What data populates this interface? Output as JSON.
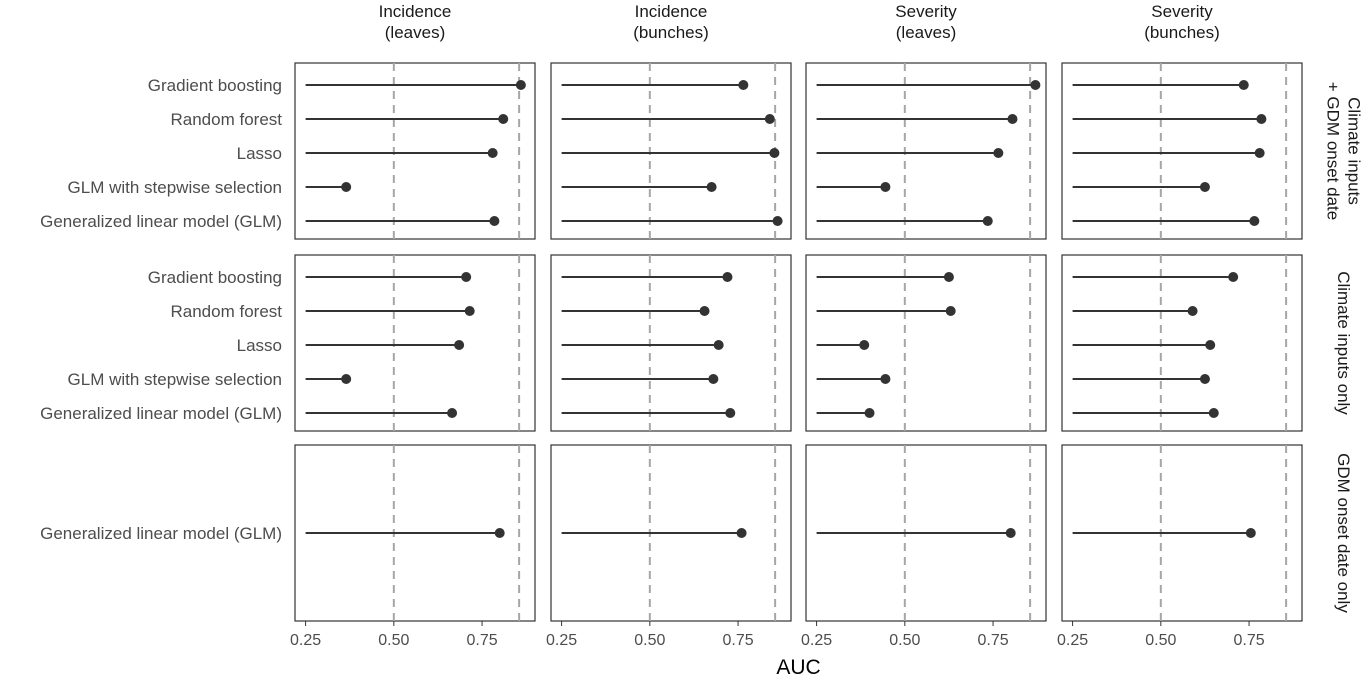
{
  "chart_data": {
    "type": "lollipop",
    "xlabel": "AUC",
    "xlim": [
      0.22,
      0.9
    ],
    "xticks": [
      "0.25",
      "0.50",
      "0.75"
    ],
    "x_tick_values": [
      0.25,
      0.5,
      0.75
    ],
    "baseline": 0.25,
    "reference_lines": [
      0.5,
      0.855
    ],
    "grid": false,
    "columns": [
      "Incidence\n(leaves)",
      "Incidence\n(bunches)",
      "Severity\n(leaves)",
      "Severity\n(bunches)"
    ],
    "row_panels": [
      {
        "label": "Climate inputs\n+ GDM onset date",
        "models": [
          "Gradient boosting",
          "Random forest",
          "Lasso",
          "GLM with stepwise selection",
          "Generalized linear model (GLM)"
        ],
        "values": [
          [
            0.86,
            0.81,
            0.78,
            0.365,
            0.785
          ],
          [
            0.765,
            0.84,
            0.853,
            0.675,
            0.862
          ],
          [
            0.87,
            0.805,
            0.765,
            0.445,
            0.735
          ],
          [
            0.735,
            0.785,
            0.78,
            0.625,
            0.765
          ]
        ]
      },
      {
        "label": "Climate inputs only",
        "models": [
          "Gradient boosting",
          "Random forest",
          "Lasso",
          "GLM with stepwise selection",
          "Generalized linear model (GLM)"
        ],
        "values": [
          [
            0.705,
            0.715,
            0.685,
            0.365,
            0.665
          ],
          [
            0.72,
            0.655,
            0.695,
            0.68,
            0.728
          ],
          [
            0.625,
            0.63,
            0.385,
            0.445,
            0.4
          ],
          [
            0.705,
            0.59,
            0.64,
            0.625,
            0.65
          ]
        ]
      },
      {
        "label": "GDM onset date only",
        "models": [
          "Generalized linear model (GLM)"
        ],
        "values": [
          [
            0.8
          ],
          [
            0.76
          ],
          [
            0.8
          ],
          [
            0.755
          ]
        ]
      }
    ]
  }
}
